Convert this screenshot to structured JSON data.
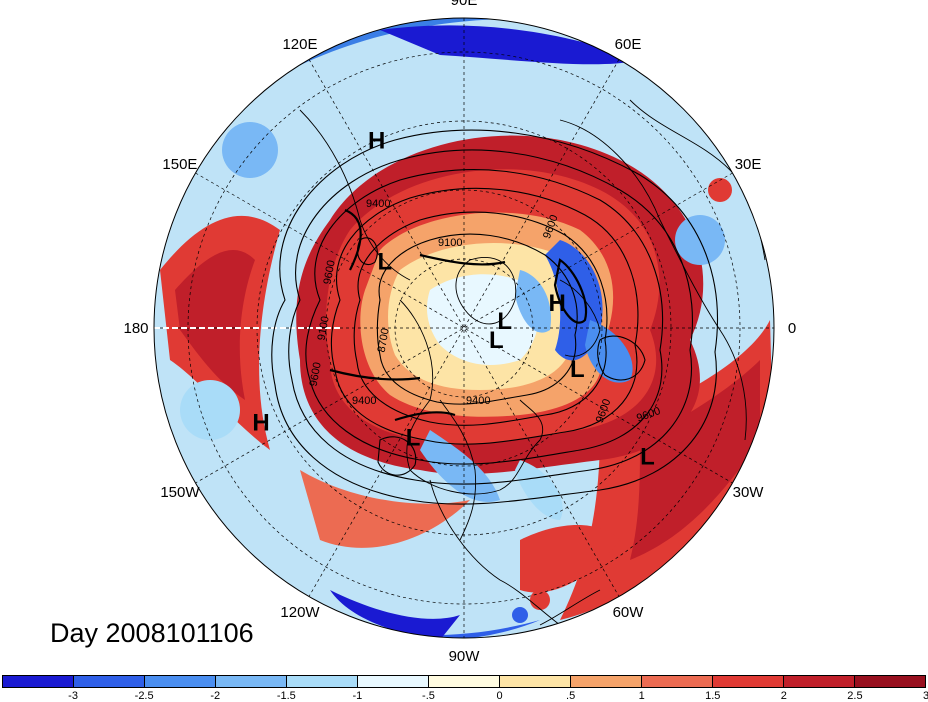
{
  "map": {
    "longitude_labels": [
      {
        "text": "90E",
        "lon": 90
      },
      {
        "text": "60E",
        "lon": 60
      },
      {
        "text": "30E",
        "lon": 30
      },
      {
        "text": "0",
        "lon": 0
      },
      {
        "text": "30W",
        "lon": -30
      },
      {
        "text": "60W",
        "lon": -60
      },
      {
        "text": "90W",
        "lon": -90
      },
      {
        "text": "120W",
        "lon": -120
      },
      {
        "text": "150W",
        "lon": -150
      },
      {
        "text": "180",
        "lon": 180
      },
      {
        "text": "150E",
        "lon": 150
      },
      {
        "text": "120E",
        "lon": 120
      }
    ],
    "pressure_systems": [
      {
        "text": "H",
        "lon": 115,
        "lat": 30
      },
      {
        "text": "L",
        "lon": 140,
        "lat": 60
      },
      {
        "text": "L",
        "lon": 10,
        "lat": 78
      },
      {
        "text": "L",
        "lon": -20,
        "lat": 80
      },
      {
        "text": "H",
        "lon": 15,
        "lat": 62
      },
      {
        "text": "L",
        "lon": -20,
        "lat": 55
      },
      {
        "text": "H",
        "lon": -155,
        "lat": 25
      },
      {
        "text": "L",
        "lon": -115,
        "lat": 55
      },
      {
        "text": "L",
        "lon": -35,
        "lat": 25
      }
    ],
    "contour_labels": [
      "9100",
      "9400",
      "9600",
      "9600",
      "9600",
      "9600",
      "9400",
      "9100",
      "8700",
      "9600",
      "9400"
    ],
    "colors": {
      "land_outline": "#000000",
      "contour": "#000000",
      "dateline": "#ffffff"
    }
  },
  "day_label": "Day 2008101106",
  "colorbar": {
    "colors": [
      "#1a1ad2",
      "#2f5fe8",
      "#4a8ef0",
      "#79b8f5",
      "#a9dcf8",
      "#e8f8ff",
      "#fffbe0",
      "#fde4a6",
      "#f5a36a",
      "#ec6b52",
      "#e03a34",
      "#c01f2a",
      "#98101f"
    ],
    "ticks": [
      "-3",
      "-2.5",
      "-2",
      "-1.5",
      "-1",
      "-.5",
      "0",
      ".5",
      "1",
      "1.5",
      "2",
      "2.5",
      "3"
    ]
  }
}
